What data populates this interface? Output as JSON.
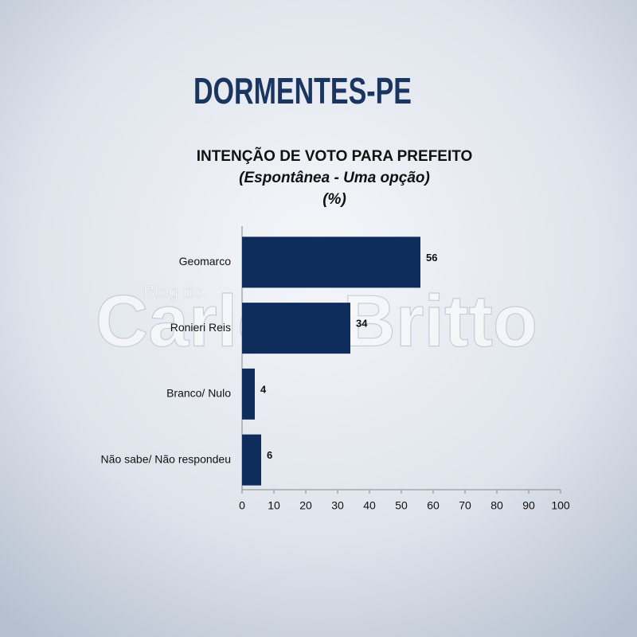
{
  "header": "DORMENTES-PE",
  "watermark": {
    "small": "Blog do",
    "large": "Carlos Britto"
  },
  "chart_data": {
    "type": "hbar",
    "title": "INTENÇÃO DE VOTO PARA PREFEITO",
    "subtitle": "(Espontânea - Uma opção)",
    "unit": "(%)",
    "categories": [
      "Geomarco",
      "Ronieri Reis",
      "Branco/ Nulo",
      "Não sabe/ Não respondeu"
    ],
    "values": [
      56,
      34,
      4,
      6
    ],
    "color": "#0e2c5c",
    "xlim": [
      0,
      100
    ],
    "xticks": [
      0,
      10,
      20,
      30,
      40,
      50,
      60,
      70,
      80,
      90,
      100
    ]
  }
}
